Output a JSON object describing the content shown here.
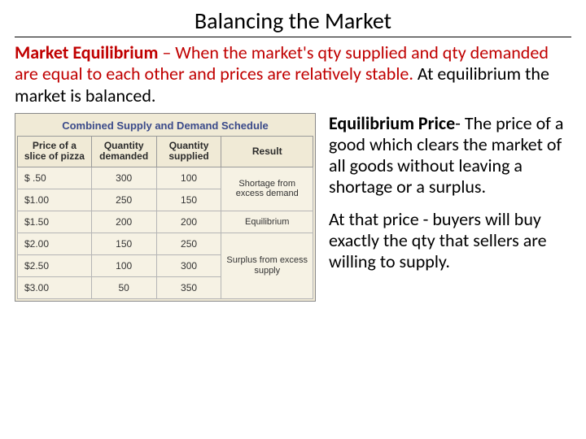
{
  "title": "Balancing the Market",
  "definition": {
    "term": "Market Equilibrium",
    "sep": " – ",
    "body_red": "When the market's qty supplied and qty demanded are equal to each other and prices are relatively stable.",
    "body_black": "At equilibrium the market is balanced."
  },
  "table": {
    "title": "Combined Supply and Demand Schedule",
    "columns": [
      "Price of a slice of pizza",
      "Quantity demanded",
      "Quantity supplied",
      "Result"
    ],
    "col_widths_pct": [
      25,
      22,
      22,
      31
    ],
    "shortage_text": "Shortage from excess demand",
    "equilibrium_text": "Equilibrium",
    "surplus_text": "Surplus from excess supply",
    "rows": [
      {
        "price": "$ .50",
        "qd": "300",
        "qs": "100",
        "result_ref": "shortage",
        "rowspan": 2,
        "first": true
      },
      {
        "price": "$1.00",
        "qd": "250",
        "qs": "150",
        "result_ref": "shortage",
        "rowspan": 0,
        "first": false
      },
      {
        "price": "$1.50",
        "qd": "200",
        "qs": "200",
        "result_ref": "equilibrium",
        "rowspan": 1,
        "first": true
      },
      {
        "price": "$2.00",
        "qd": "150",
        "qs": "250",
        "result_ref": "surplus",
        "rowspan": 3,
        "first": true
      },
      {
        "price": "$2.50",
        "qd": "100",
        "qs": "300",
        "result_ref": "surplus",
        "rowspan": 0,
        "first": false
      },
      {
        "price": "$3.00",
        "qd": "50",
        "qs": "350",
        "result_ref": "surplus",
        "rowspan": 0,
        "first": false
      }
    ],
    "bg_color": "#f0ead6",
    "title_color": "#3a4a8a",
    "border_color": "#9a9a9a"
  },
  "right": {
    "p1_term": "Equilibrium Price",
    "p1_dash": "- ",
    "p1_body": "The price of a good which clears the market of all goods without leaving a shortage or a surplus.",
    "p2": "At that price - buyers will buy exactly the qty that sellers are willing to supply."
  },
  "colors": {
    "red": "#c00000",
    "black": "#000000"
  }
}
